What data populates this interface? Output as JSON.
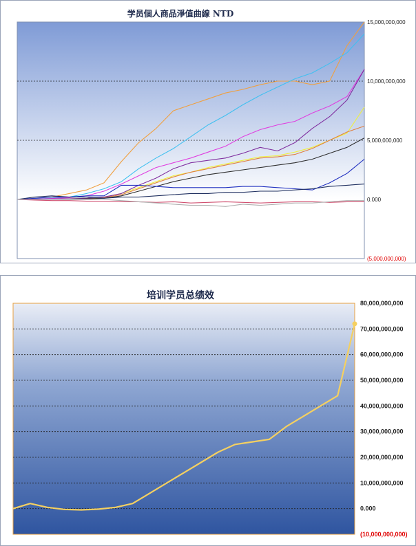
{
  "charts": {
    "top": {
      "title": "学员個人商品淨值曲線 NTD",
      "ticks": [
        "15,000,000,000",
        "10,000,000,000",
        "5,000,000,000",
        "0.000",
        "(5,000,000,000)"
      ]
    },
    "bottom": {
      "title": "培训学员总绩效",
      "ticks": [
        "80,000,000,000",
        "70,000,000,000",
        "60,000,000,000",
        "50,000,000,000",
        "40,000,000,000",
        "30,000,000,000",
        "20,000,000,000",
        "10,000,000,000",
        "0.000",
        "(10,000,000,000)"
      ]
    }
  },
  "chart_data": [
    {
      "type": "line",
      "title": "学员個人商品淨值曲線 NTD",
      "ylim": [
        -5000000000,
        15000000000
      ],
      "y_ticks": [
        15000000000,
        10000000000,
        5000000000,
        0,
        -5000000000
      ],
      "grid": "dashed lines at 10,000,000,000 and 5,000,000,000",
      "x": [
        0,
        5,
        10,
        15,
        20,
        25,
        30,
        35,
        40,
        45,
        50,
        55,
        60,
        65,
        70,
        75,
        80,
        85,
        90,
        95,
        100
      ],
      "series": [
        {
          "color": "#f0a040",
          "values": [
            0,
            100000000,
            200000000,
            500000000,
            800000000,
            1400000000,
            3200000000,
            4800000000,
            6000000000,
            7500000000,
            8000000000,
            8500000000,
            9000000000,
            9300000000,
            9700000000,
            10000000000,
            10000000000,
            9700000000,
            10000000000,
            13000000000,
            15000000000
          ]
        },
        {
          "color": "#40c0f0",
          "values": [
            0,
            50000000,
            100000000,
            200000000,
            500000000,
            900000000,
            1500000000,
            2600000000,
            3500000000,
            4300000000,
            5300000000,
            6300000000,
            7100000000,
            8000000000,
            8800000000,
            9500000000,
            10200000000,
            10700000000,
            11500000000,
            12400000000,
            14000000000
          ]
        },
        {
          "color": "#e040e0",
          "values": [
            0,
            30000000,
            80000000,
            150000000,
            300000000,
            700000000,
            1300000000,
            2000000000,
            2700000000,
            3100000000,
            3500000000,
            4000000000,
            4500000000,
            5300000000,
            5900000000,
            6300000000,
            6600000000,
            7300000000,
            7900000000,
            8700000000,
            11000000000
          ]
        },
        {
          "color": "#f0f040",
          "values": [
            0,
            10000000,
            20000000,
            50000000,
            100000000,
            200000000,
            500000000,
            1000000000,
            1500000000,
            2000000000,
            2300000000,
            2700000000,
            3000000000,
            3300000000,
            3600000000,
            3700000000,
            4000000000,
            4400000000,
            5000000000,
            5600000000,
            7800000000
          ]
        },
        {
          "color": "#e08040",
          "values": [
            0,
            0,
            10000000,
            40000000,
            80000000,
            150000000,
            400000000,
            900000000,
            1400000000,
            1900000000,
            2300000000,
            2600000000,
            2900000000,
            3200000000,
            3500000000,
            3600000000,
            3800000000,
            4300000000,
            5000000000,
            5700000000,
            6200000000
          ]
        },
        {
          "color": "#8030a0",
          "values": [
            0,
            20000000,
            40000000,
            60000000,
            100000000,
            200000000,
            500000000,
            1200000000,
            1800000000,
            2600000000,
            3100000000,
            3300000000,
            3500000000,
            3900000000,
            4400000000,
            4100000000,
            4800000000,
            6000000000,
            7000000000,
            8400000000,
            11000000000
          ]
        },
        {
          "color": "#303030",
          "values": [
            0,
            0,
            0,
            10000000,
            50000000,
            100000000,
            300000000,
            700000000,
            1100000000,
            1500000000,
            1800000000,
            2100000000,
            2300000000,
            2500000000,
            2700000000,
            2900000000,
            3100000000,
            3400000000,
            3900000000,
            4400000000,
            5200000000
          ]
        },
        {
          "color": "#2030c0",
          "values": [
            0,
            100000000,
            200000000,
            200000000,
            300000000,
            300000000,
            1200000000,
            1200000000,
            1100000000,
            1000000000,
            1000000000,
            1000000000,
            1000000000,
            1100000000,
            1100000000,
            1000000000,
            900000000,
            800000000,
            1400000000,
            2200000000,
            3400000000
          ]
        },
        {
          "color": "#203060",
          "values": [
            0,
            200000000,
            300000000,
            200000000,
            200000000,
            100000000,
            200000000,
            200000000,
            300000000,
            400000000,
            500000000,
            500000000,
            600000000,
            600000000,
            700000000,
            700000000,
            800000000,
            900000000,
            1100000000,
            1200000000,
            1300000000
          ]
        },
        {
          "color": "#d05070",
          "values": [
            0,
            -50000000,
            -100000000,
            -100000000,
            -150000000,
            -150000000,
            -200000000,
            -200000000,
            -250000000,
            -200000000,
            -300000000,
            -250000000,
            -200000000,
            -250000000,
            -300000000,
            -250000000,
            -200000000,
            -200000000,
            -250000000,
            -200000000,
            -200000000
          ]
        },
        {
          "color": "#b0b0b0",
          "values": [
            0,
            0,
            0,
            0,
            0,
            0,
            -100000000,
            -200000000,
            -300000000,
            -400000000,
            -500000000,
            -500000000,
            -600000000,
            -400000000,
            -500000000,
            -400000000,
            -300000000,
            -300000000,
            -200000000,
            -100000000,
            -100000000
          ]
        }
      ]
    },
    {
      "type": "line",
      "title": "培训学员总绩效",
      "ylim": [
        -10000000000,
        80000000000
      ],
      "y_ticks": [
        80000000000,
        70000000000,
        60000000000,
        50000000000,
        40000000000,
        30000000000,
        20000000000,
        10000000000,
        0,
        -10000000000
      ],
      "grid": "dashed horizontal gridlines at each tick",
      "x": [
        0,
        5,
        10,
        15,
        20,
        25,
        30,
        35,
        40,
        45,
        50,
        55,
        60,
        65,
        70,
        75,
        80,
        85,
        90,
        95,
        100
      ],
      "series": [
        {
          "color": "#f5d060",
          "values": [
            0,
            2000000000,
            500000000,
            -300000000,
            -500000000,
            -200000000,
            500000000,
            2000000000,
            6000000000,
            10000000000,
            14000000000,
            18000000000,
            22000000000,
            25000000000,
            26000000000,
            27000000000,
            32000000000,
            36000000000,
            40000000000,
            44000000000,
            72000000000
          ]
        }
      ]
    }
  ]
}
